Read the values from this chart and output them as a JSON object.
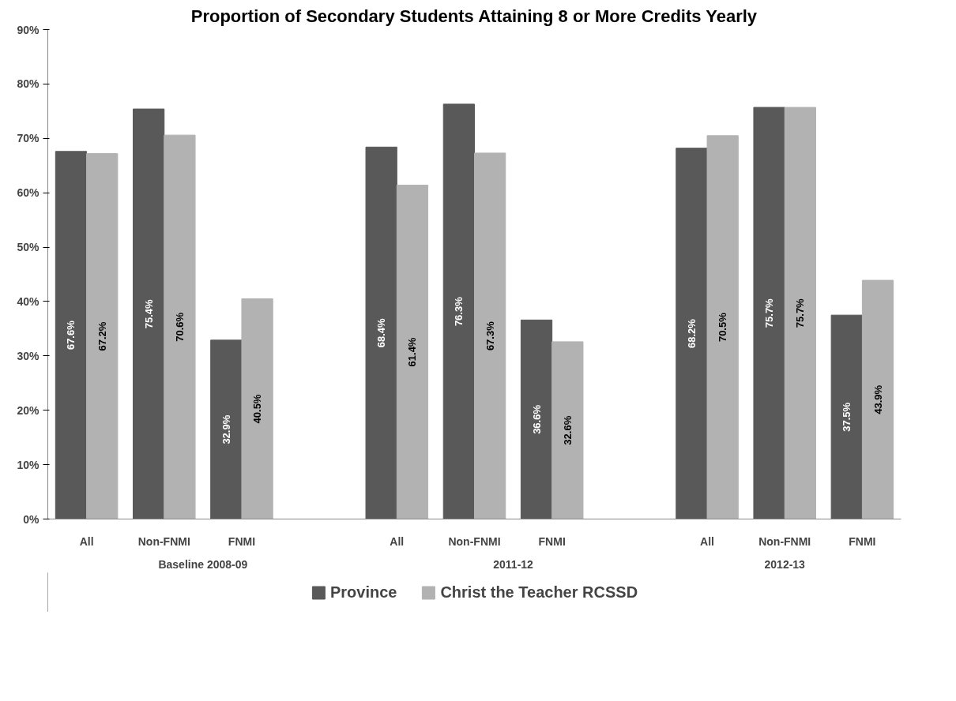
{
  "chart_data": {
    "type": "bar",
    "title": "Proportion of Secondary Students Attaining 8 or More Credits Yearly",
    "categories": [
      "All",
      "Non-FNMI",
      "FNMI",
      null,
      "All",
      "Non-FNMI",
      "FNMI",
      null,
      "All",
      "Non-FNMI",
      "FNMI"
    ],
    "series": [
      {
        "name": "Province",
        "color": "#595959",
        "values": [
          67.6,
          75.4,
          32.9,
          null,
          68.4,
          76.3,
          36.6,
          null,
          68.2,
          75.7,
          37.5
        ],
        "value_labels": [
          "67.6%",
          "75.4%",
          "32.9%",
          null,
          "68.4%",
          "76.3%",
          "36.6%",
          null,
          "68.2%",
          "75.7%",
          "37.5%"
        ]
      },
      {
        "name": "Christ the Teacher RCSSD",
        "color": "#b2b2b2",
        "values": [
          67.2,
          70.6,
          40.5,
          null,
          61.4,
          67.3,
          32.6,
          null,
          70.5,
          75.7,
          43.9
        ],
        "value_labels": [
          "67.2%",
          "70.6%",
          "40.5%",
          null,
          "61.4%",
          "67.3%",
          "32.6%",
          null,
          "70.5%",
          "75.7%",
          "43.9%"
        ]
      }
    ],
    "annotations": [
      "Baseline 2008-09",
      "2011-12",
      "2012-13"
    ],
    "ylim": [
      0,
      90
    ],
    "yticks": [
      {
        "value": 0,
        "label": "0%"
      },
      {
        "value": 10,
        "label": "10%"
      },
      {
        "value": 20,
        "label": "20%"
      },
      {
        "value": 30,
        "label": "30%"
      },
      {
        "value": 40,
        "label": "40%"
      },
      {
        "value": 50,
        "label": "50%"
      },
      {
        "value": 60,
        "label": "60%"
      },
      {
        "value": 70,
        "label": "70%"
      },
      {
        "value": 80,
        "label": "80%"
      },
      {
        "value": 90,
        "label": "90%"
      }
    ],
    "grid": false,
    "legend": "bottom"
  }
}
